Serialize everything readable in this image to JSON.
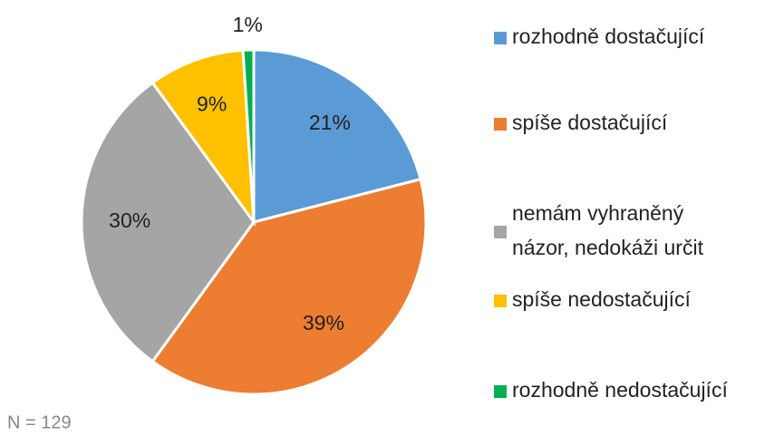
{
  "chart_data": {
    "type": "pie",
    "categories": [
      "rozhodně dostačující",
      "spíše dostačující",
      "nemám vyhraněný názor, nedokáži určit",
      "spíše nedostačující",
      "rozhodně nedostačující"
    ],
    "values": [
      21,
      39,
      30,
      9,
      1
    ],
    "value_labels": [
      "21%",
      "39%",
      "30%",
      "9%",
      "1%"
    ],
    "colors": [
      "#5b9bd5",
      "#ed7d31",
      "#a5a5a5",
      "#ffc000",
      "#00b050"
    ],
    "legend": "right",
    "note": "N = 129"
  }
}
